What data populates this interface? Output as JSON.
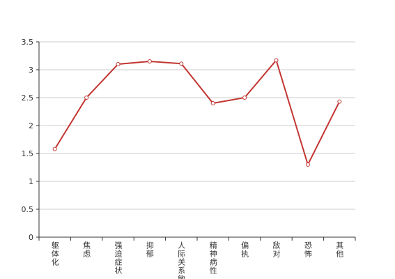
{
  "chart_data": {
    "type": "line",
    "categories": [
      "躯体化",
      "焦虑",
      "强迫症状",
      "抑郁",
      "人际关系敏感",
      "精神病性",
      "偏执",
      "敌对",
      "恐怖",
      "其他"
    ],
    "series": [
      {
        "name": "",
        "color": "#c23531",
        "values": [
          1.58,
          2.5,
          3.1,
          3.15,
          3.11,
          2.4,
          2.5,
          3.17,
          1.3,
          2.43
        ]
      }
    ],
    "ylim": [
      0,
      3.5
    ],
    "yticks": [
      0,
      0.5,
      1,
      1.5,
      2,
      2.5,
      3,
      3.5
    ],
    "grid": true
  }
}
